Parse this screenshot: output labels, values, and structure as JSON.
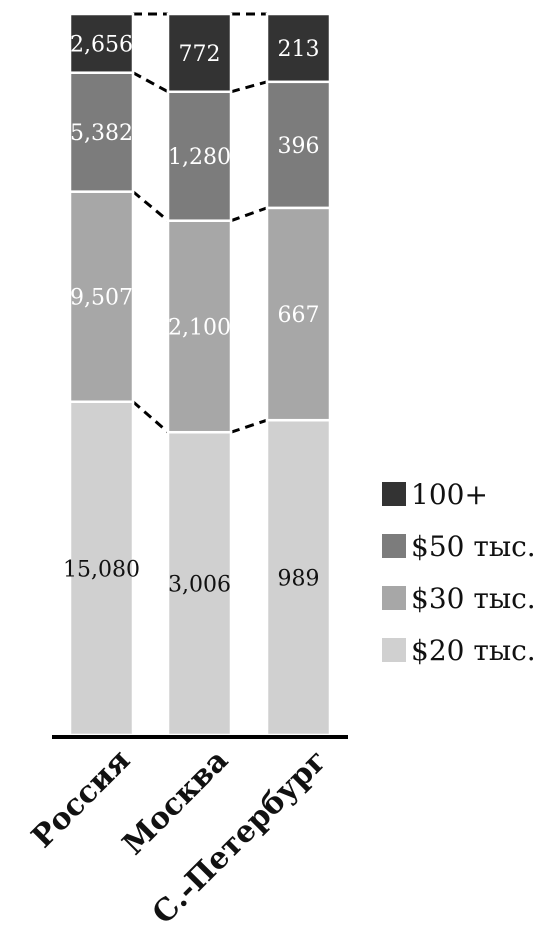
{
  "chart_data": {
    "type": "bar",
    "stacked": true,
    "categories": [
      "Россия",
      "Москва",
      "С.-Петербург"
    ],
    "series": [
      {
        "name": "$20 тыс.",
        "values": [
          15080,
          3006,
          989
        ],
        "color": "#d0d0d0",
        "label_color": "#111111"
      },
      {
        "name": "$30 тыс.",
        "values": [
          9507,
          2100,
          667
        ],
        "color": "#a7a7a7",
        "label_color": "#ffffff"
      },
      {
        "name": "$50 тыс.",
        "values": [
          5382,
          1280,
          396
        ],
        "color": "#7c7c7c",
        "label_color": "#ffffff"
      },
      {
        "name": "100+",
        "values": [
          2656,
          772,
          213
        ],
        "color": "#333333",
        "label_color": "#ffffff"
      }
    ],
    "data_labels": [
      [
        "15,080",
        "3,006",
        "989"
      ],
      [
        "9,507",
        "2,100",
        "667"
      ],
      [
        "5,382",
        "1,280",
        "396"
      ],
      [
        "2,656",
        "772",
        "213"
      ]
    ],
    "normalized": true,
    "connector_lines": "dashed",
    "legend": "right",
    "legend_order": [
      "100+",
      "$50 тыс.",
      "$30 тыс.",
      "$20 тыс."
    ],
    "xlabel": "",
    "ylabel": ""
  }
}
